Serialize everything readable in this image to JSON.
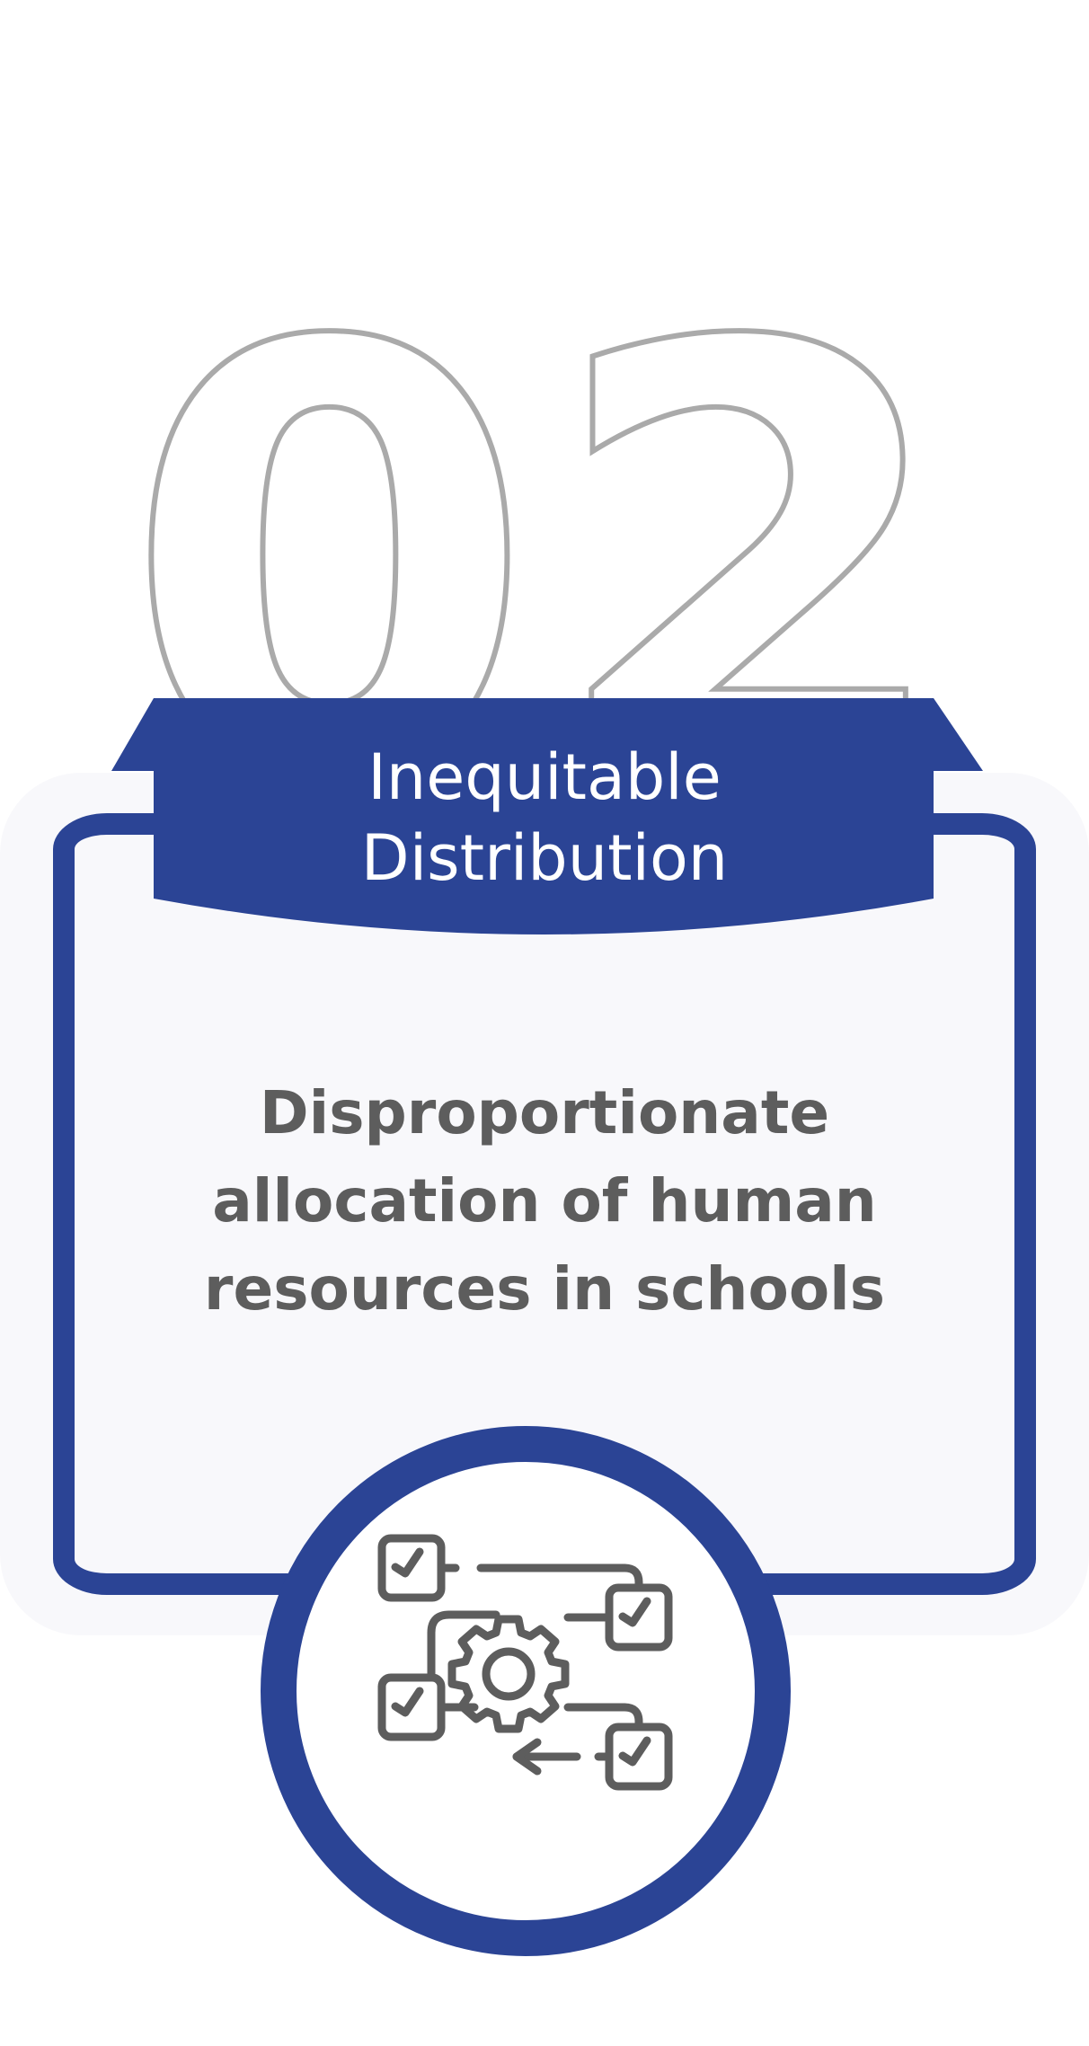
{
  "number": "02",
  "title_lines": [
    "Inequitable",
    "Distribution"
  ],
  "description_lines": [
    "Disproportionate",
    "allocation of human",
    "resources in schools"
  ],
  "icon": "workflow-gear-checklist-icon",
  "colors": {
    "accent": "#2b4495",
    "number_outline": "#aaaaaa",
    "text": "#5d5d5d",
    "icon": "#5d5d5d",
    "card_background": "#f8f8fb",
    "title_text": "#ffffff"
  }
}
